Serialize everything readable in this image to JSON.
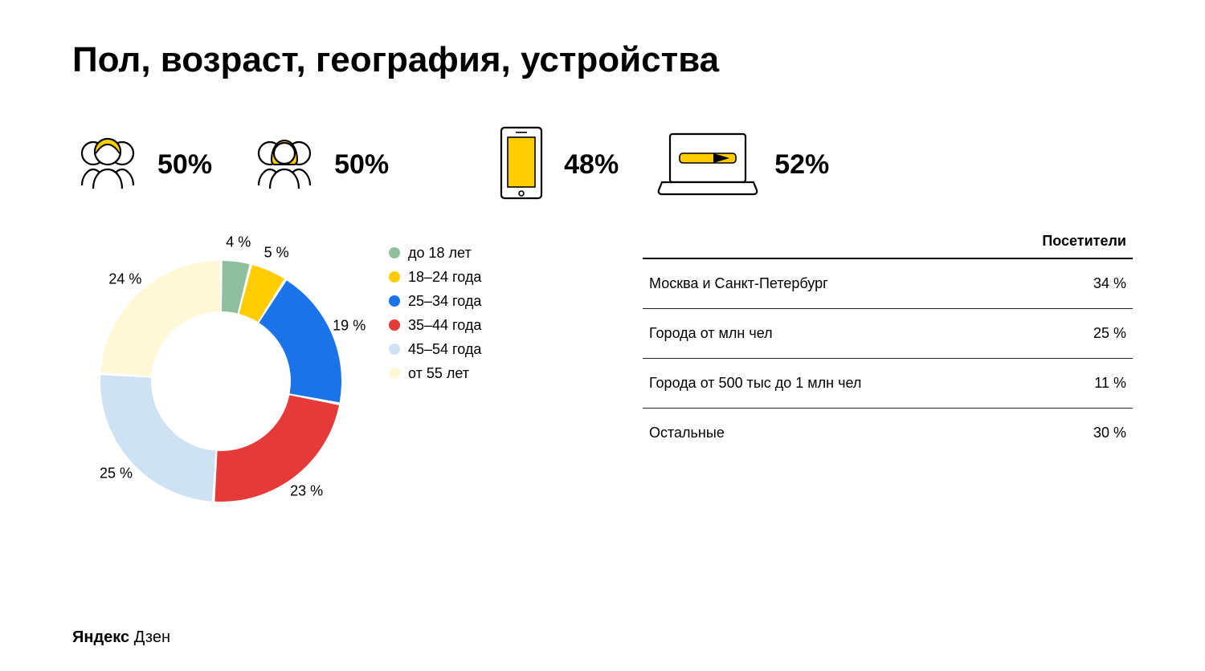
{
  "title": "Пол, возраст, география, устройства",
  "footer_brand": "Яндекс",
  "footer_product": "Дзен",
  "accent": "#ffcc00",
  "gender": {
    "male": {
      "value": "50%"
    },
    "female": {
      "value": "50%"
    }
  },
  "devices": {
    "mobile": {
      "value": "48%"
    },
    "laptop": {
      "value": "52%"
    }
  },
  "age_chart": {
    "type": "donut",
    "inner_ratio": 0.58,
    "start_angle_deg": -90,
    "segments": [
      {
        "label": "до 18 лет",
        "value": 4,
        "color": "#8fbf9f",
        "text": "4 %"
      },
      {
        "label": "18–24 года",
        "value": 5,
        "color": "#ffcc00",
        "text": "5 %"
      },
      {
        "label": "25–34 года",
        "value": 19,
        "color": "#1a73e8",
        "text": "19 %"
      },
      {
        "label": "35–44 года",
        "value": 23,
        "color": "#e63939",
        "text": "23 %"
      },
      {
        "label": "45–54 года",
        "value": 25,
        "color": "#cfe2f3",
        "text": "25 %"
      },
      {
        "label": "от 55 лет",
        "value": 24,
        "color": "#fff8d6",
        "text": "24 %"
      }
    ],
    "label_fontsize": 18
  },
  "geo_table": {
    "header": "Посетители",
    "rows": [
      {
        "name": "Москва и Санкт-Петербург",
        "value": "34 %"
      },
      {
        "name": "Города от млн чел",
        "value": "25 %"
      },
      {
        "name": "Города от 500 тыс до 1 млн чел",
        "value": "11 %"
      },
      {
        "name": "Остальные",
        "value": "30 %"
      }
    ]
  }
}
